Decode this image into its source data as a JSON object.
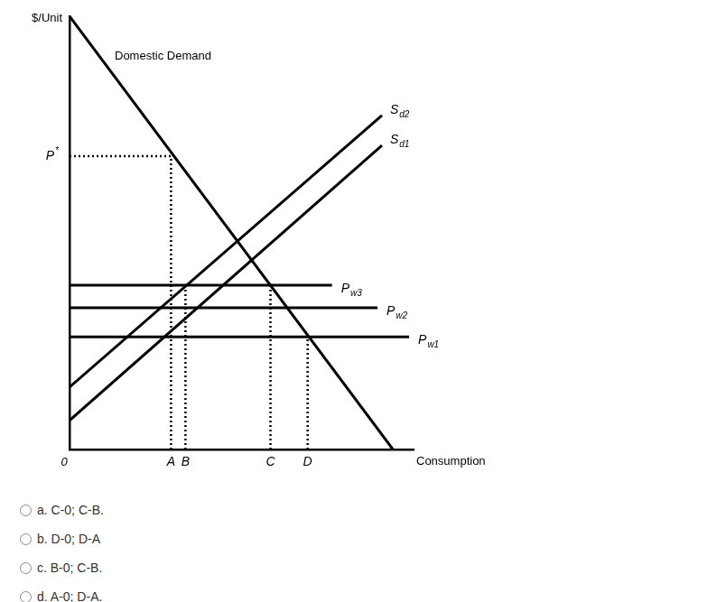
{
  "chart_data": {
    "type": "line",
    "x_label": "Consumption",
    "y_label": "$/Unit",
    "origin_label": "0",
    "xlim": [
      0,
      100
    ],
    "ylim": [
      0,
      100
    ],
    "xticks": [],
    "yticks": [],
    "tick_labels": false,
    "grid": false,
    "series": [
      {
        "name": "Domestic Demand",
        "color": "#000000",
        "line_style": "solid",
        "x": [
          0,
          94
        ],
        "values": [
          100,
          0
        ]
      },
      {
        "name": "Sd2",
        "color": "#000000",
        "line_style": "solid",
        "x": [
          0,
          90.8
        ],
        "values": [
          14.4,
          77.1
        ]
      },
      {
        "name": "Sd1",
        "color": "#000000",
        "line_style": "solid",
        "x": [
          0,
          90.8
        ],
        "values": [
          6.7,
          70.2
        ]
      },
      {
        "name": "Pw3",
        "color": "#000000",
        "line_style": "solid",
        "x": [
          0,
          76.3
        ],
        "values": [
          37.9,
          37.9
        ]
      },
      {
        "name": "Pw2",
        "color": "#000000",
        "line_style": "solid",
        "x": [
          0,
          89.5
        ],
        "values": [
          32.7,
          32.7
        ]
      },
      {
        "name": "Pw1",
        "color": "#000000",
        "line_style": "solid",
        "x": [
          0,
          98.7
        ],
        "values": [
          26,
          26
        ]
      },
      {
        "name": "P*",
        "color": "#000000",
        "line_style": "dotted",
        "x": [
          0,
          29.5
        ],
        "values": [
          67.7,
          67.7
        ]
      },
      {
        "name": "A",
        "color": "#000000",
        "line_style": "dotted",
        "x": [
          29.5,
          29.5
        ],
        "values": [
          0,
          67.7
        ]
      },
      {
        "name": "B",
        "color": "#000000",
        "line_style": "dotted",
        "x": [
          33.7,
          33.7
        ],
        "values": [
          0,
          37.9
        ]
      },
      {
        "name": "C",
        "color": "#000000",
        "line_style": "dotted",
        "x": [
          58.4,
          58.4
        ],
        "values": [
          0,
          37.9
        ]
      },
      {
        "name": "D",
        "color": "#000000",
        "line_style": "dotted",
        "x": [
          69.2,
          69.2
        ],
        "values": [
          0,
          26
        ]
      }
    ]
  },
  "options": [
    "a. C-0; C-B.",
    "b. D-0; D-A",
    "c. B-0; C-B.",
    "d. A-0; D-A."
  ]
}
